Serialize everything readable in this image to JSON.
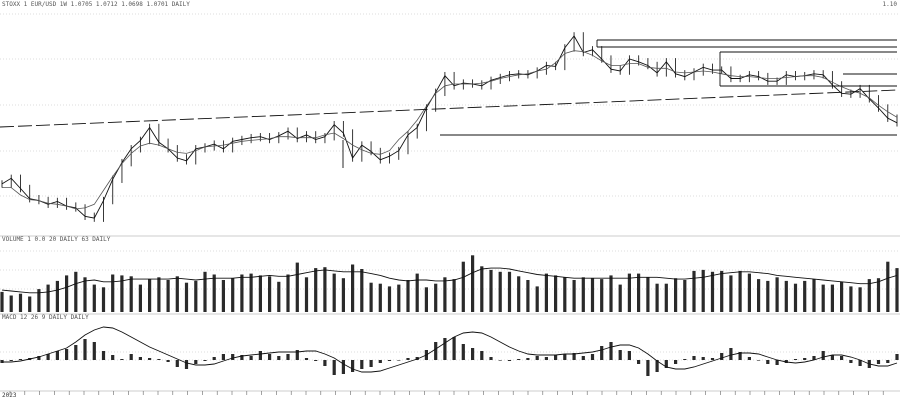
{
  "header": {
    "main": "STOXX 1 EUR/USD 1W 1.0705 1.0712 1.0698 1.0701 DAILY",
    "volume": "VOLUME 1 0.0 20 DAILY 63 DAILY",
    "oscillator": "MACD 12 26 9 DAILY DAILY",
    "right": "1.10"
  },
  "axis": {
    "year": "2023"
  },
  "chart_data": [
    {
      "type": "line",
      "panel": "price",
      "series": [
        {
          "values": [
            188,
            182,
            193,
            204,
            206,
            210,
            207,
            212,
            214,
            223,
            225,
            206,
            183,
            165,
            150,
            141,
            127,
            143,
            150,
            160,
            163,
            150,
            148,
            145,
            150,
            142,
            140,
            138,
            137,
            140,
            136,
            131,
            139,
            135,
            140,
            137,
            124,
            133,
            160,
            146,
            153,
            162,
            158,
            152,
            135,
            127,
            106,
            89,
            71,
            82,
            79,
            80,
            82,
            76,
            73,
            70,
            69,
            70,
            66,
            60,
            61,
            41,
            28,
            46,
            43,
            53,
            64,
            66,
            53,
            56,
            60,
            68,
            56,
            69,
            72,
            67,
            62,
            65,
            65,
            74,
            74,
            70,
            72,
            77,
            77,
            70,
            72,
            71,
            69,
            70,
            81,
            90,
            91,
            85,
            96,
            106,
            117,
            122
          ]
        }
      ]
    },
    {
      "type": "line",
      "panel": "price-ma",
      "series": [
        {
          "values": [
            192,
            192,
            200,
            205,
            206,
            209,
            210,
            212,
            215,
            214,
            210,
            195,
            180,
            166,
            155,
            147,
            144,
            146,
            150,
            154,
            155,
            152,
            148,
            147,
            146,
            144,
            142,
            141,
            140,
            139,
            137,
            137,
            138,
            138,
            138,
            135,
            133,
            139,
            146,
            151,
            155,
            156,
            152,
            140,
            131,
            119,
            104,
            90,
            82,
            80,
            80,
            80,
            79,
            77,
            74,
            72,
            70,
            69,
            66,
            64,
            57,
            47,
            44,
            45,
            49,
            55,
            60,
            60,
            58,
            58,
            62,
            63,
            63,
            67,
            68,
            67,
            66,
            67,
            69,
            71,
            72,
            72,
            73,
            74,
            74,
            73,
            72,
            71,
            71,
            73,
            78,
            83,
            87,
            90,
            95,
            103,
            110,
            116
          ]
        }
      ]
    },
    {
      "type": "bar",
      "panel": "volume",
      "values": [
        22,
        18,
        20,
        17,
        25,
        30,
        34,
        40,
        44,
        38,
        30,
        27,
        41,
        40,
        39,
        30,
        36,
        38,
        35,
        39,
        32,
        34,
        44,
        41,
        35,
        37,
        41,
        42,
        40,
        39,
        33,
        41,
        54,
        38,
        48,
        49,
        42,
        37,
        52,
        47,
        32,
        31,
        28,
        30,
        35,
        42,
        27,
        31,
        38,
        36,
        55,
        62,
        50,
        46,
        44,
        44,
        39,
        35,
        28,
        42,
        40,
        38,
        35,
        38,
        37,
        36,
        40,
        30,
        42,
        42,
        38,
        31,
        31,
        37,
        35,
        45,
        46,
        44,
        45,
        40,
        45,
        42,
        36,
        34,
        38,
        34,
        31,
        34,
        36,
        30,
        30,
        33,
        28,
        27,
        36,
        37,
        55,
        48
      ]
    },
    {
      "type": "line",
      "panel": "volume-ma",
      "values": [
        24,
        23,
        22,
        21,
        21,
        22,
        24,
        27,
        31,
        34,
        35,
        33,
        33,
        34,
        36,
        36,
        36,
        36,
        36,
        37,
        36,
        35,
        36,
        37,
        37,
        37,
        38,
        38,
        39,
        40,
        39,
        39,
        41,
        43,
        45,
        46,
        45,
        44,
        44,
        44,
        42,
        40,
        37,
        35,
        34,
        35,
        35,
        34,
        34,
        35,
        38,
        43,
        47,
        48,
        48,
        47,
        45,
        43,
        41,
        40,
        39,
        38,
        37,
        37,
        37,
        37,
        37,
        37,
        37,
        38,
        38,
        38,
        37,
        36,
        36,
        37,
        38,
        40,
        42,
        43,
        44,
        44,
        43,
        42,
        40,
        39,
        38,
        37,
        36,
        35,
        34,
        33,
        32,
        31,
        31,
        33,
        37,
        40
      ]
    },
    {
      "type": "bar",
      "panel": "macd-histogram",
      "values": [
        -3,
        -1,
        1,
        2,
        4,
        6,
        9,
        11,
        15,
        21,
        18,
        9,
        5,
        1,
        6,
        3,
        2,
        1,
        -2,
        -7,
        -9,
        -4,
        -1,
        3,
        6,
        6,
        5,
        4,
        9,
        6,
        4,
        6,
        10,
        2,
        -1,
        -6,
        -15,
        -14,
        -12,
        -9,
        -7,
        -3,
        -1,
        0,
        2,
        3,
        10,
        18,
        22,
        23,
        16,
        12,
        9,
        3,
        0,
        -1,
        1,
        2,
        4,
        3,
        5,
        6,
        7,
        4,
        6,
        14,
        18,
        10,
        9,
        -4,
        -16,
        -12,
        -8,
        -4,
        1,
        4,
        3,
        2,
        7,
        12,
        8,
        3,
        0,
        -4,
        -5,
        -3,
        1,
        2,
        4,
        9,
        5,
        4,
        -3,
        -6,
        -8,
        -4,
        -3,
        6
      ]
    },
    {
      "type": "line",
      "panel": "macd-signal",
      "values": [
        -2,
        -2,
        -1,
        1,
        3,
        6,
        9,
        12,
        18,
        25,
        30,
        33,
        32,
        28,
        23,
        18,
        13,
        9,
        5,
        1,
        -3,
        -5,
        -5,
        -4,
        -1,
        2,
        4,
        5,
        6,
        7,
        8,
        8,
        8,
        9,
        9,
        6,
        2,
        -4,
        -9,
        -12,
        -12,
        -11,
        -8,
        -5,
        -2,
        1,
        5,
        11,
        17,
        23,
        27,
        28,
        27,
        23,
        18,
        13,
        9,
        6,
        5,
        5,
        5,
        6,
        6,
        7,
        8,
        10,
        13,
        15,
        15,
        12,
        6,
        -1,
        -7,
        -9,
        -9,
        -7,
        -4,
        -1,
        2,
        5,
        7,
        7,
        6,
        3,
        0,
        -2,
        -3,
        -2,
        0,
        3,
        5,
        5,
        3,
        0,
        -4,
        -6,
        -6,
        -3
      ]
    }
  ]
}
